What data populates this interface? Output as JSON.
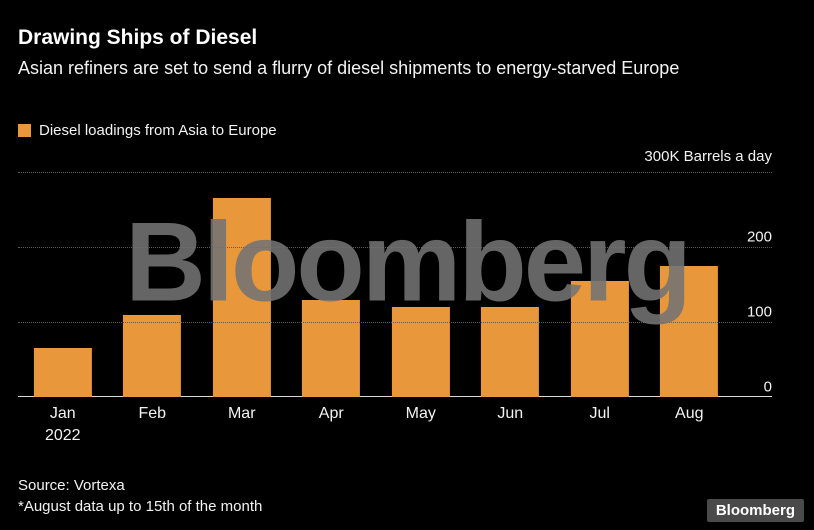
{
  "header": {
    "title": "Drawing Ships of Diesel",
    "subtitle": "Asian refiners are set to send a flurry of diesel shipments to energy-starved Europe"
  },
  "legend": {
    "label": "Diesel loadings from Asia to Europe",
    "color": "#E8973A"
  },
  "chart_data": {
    "type": "bar",
    "categories": [
      "Jan",
      "Feb",
      "Mar",
      "Apr",
      "May",
      "Jun",
      "Jul",
      "Aug"
    ],
    "values": [
      65,
      110,
      265,
      130,
      120,
      120,
      155,
      175
    ],
    "first_category_sub_label": "2022",
    "title": "Diesel loadings from Asia to Europe",
    "xlabel": "",
    "ylabel": "300K Barrels a day",
    "yticks": [
      0,
      100,
      200
    ],
    "ylim": [
      0,
      300
    ],
    "bar_color": "#E8973A",
    "grid": "horizontal-dotted",
    "legend_position": "top-left",
    "tick_label_side": "right"
  },
  "watermark": "Bloomberg",
  "footer": {
    "source": "Source: Vortexa",
    "note": "*August data up to 15th of the month",
    "logo_label": "Bloomberg"
  }
}
